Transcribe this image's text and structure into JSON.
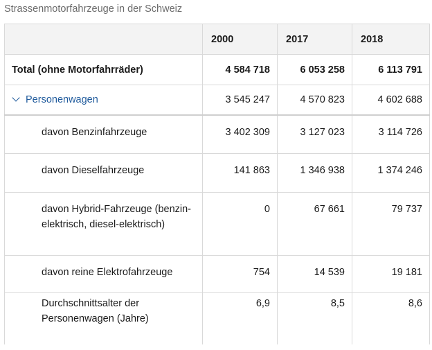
{
  "title": "Strassenmotorfahrzeuge in der Schweiz",
  "table": {
    "columns": [
      "",
      "2000",
      "2017",
      "2018"
    ],
    "rows": [
      {
        "label": "Total (ohne Motorfahrräder)",
        "values": [
          "4 584 718",
          "6 053 258",
          "6 113 791"
        ]
      },
      {
        "label": "Personenwagen",
        "values": [
          "3 545 247",
          "4 570 823",
          "4 602 688"
        ]
      },
      {
        "label": "davon Benzinfahrzeuge",
        "values": [
          "3 402 309",
          "3 127 023",
          "3 114 726"
        ]
      },
      {
        "label": "davon Dieselfahrzeuge",
        "values": [
          "141 863",
          "1 346 938",
          "1 374 246"
        ]
      },
      {
        "label": "davon Hybrid-Fahrzeuge (benzin-elektrisch, diesel-elektrisch)",
        "values": [
          "0",
          "67 661",
          "79 737"
        ]
      },
      {
        "label": "davon reine Elektrofahrzeuge",
        "values": [
          "754",
          "14 539",
          "19 181"
        ]
      },
      {
        "label": "Durchschnittsalter der Personenwagen (Jahre)",
        "values": [
          "6,9",
          "8,5",
          "8,6"
        ]
      }
    ]
  },
  "icons": {
    "group_toggle": "chevron-down-icon"
  },
  "colors": {
    "link": "#1f5a9c",
    "header_bg": "#f3f3f3",
    "title": "#6b6b6b"
  }
}
